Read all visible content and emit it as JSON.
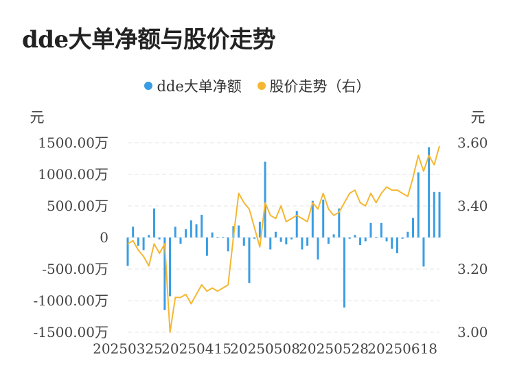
{
  "title": "dde大单净额与股价走势",
  "colors": {
    "bar": "#3a9de4",
    "line": "#f5b731",
    "grid": "#e6e6e6",
    "text": "#444444"
  },
  "chart_data": {
    "type": "bar+line",
    "legend_placement": "top-center",
    "grid": true,
    "series": [
      {
        "name": "dde大单净额",
        "type": "bar",
        "axis": "left",
        "legend_label": "dde大单净额"
      },
      {
        "name": "股价走势",
        "type": "line",
        "axis": "right",
        "legend_label": "股价走势（右）"
      }
    ],
    "y_left": {
      "unit": "元",
      "ylim": [
        -1500,
        1500
      ],
      "ticks": [
        1500,
        1000,
        500,
        0,
        -500,
        -1000,
        -1500
      ],
      "tick_labels": [
        "1500.00万",
        "1000.00万",
        "500.00万",
        "0",
        "-500.00万",
        "-1000.00万",
        "-1500.00万"
      ]
    },
    "y_right": {
      "unit": "元",
      "ylim": [
        3.0,
        3.6
      ],
      "ticks": [
        3.6,
        3.4,
        3.2,
        3.0
      ],
      "tick_labels": [
        "3.60",
        "3.40",
        "3.20",
        "3.00"
      ]
    },
    "x_tick_labels": [
      "20250325",
      "20250415",
      "20250508",
      "20250528",
      "20250618"
    ],
    "x_tick_index": [
      0,
      13,
      26,
      39,
      52
    ],
    "bars": [
      -450,
      170,
      -130,
      -200,
      40,
      460,
      -30,
      -1150,
      -930,
      170,
      -100,
      130,
      270,
      210,
      360,
      -290,
      80,
      -10,
      10,
      -220,
      180,
      190,
      -130,
      -720,
      -20,
      250,
      1200,
      -190,
      90,
      -70,
      -110,
      -30,
      420,
      -190,
      -130,
      580,
      -350,
      600,
      -100,
      50,
      460,
      -1110,
      -20,
      40,
      -120,
      -60,
      230,
      -10,
      230,
      -60,
      -180,
      -250,
      -20,
      90,
      310,
      1030,
      -460,
      1430,
      720,
      720
    ],
    "prices": [
      3.28,
      3.29,
      3.26,
      3.24,
      3.21,
      3.28,
      3.25,
      3.28,
      3.0,
      3.11,
      3.11,
      3.12,
      3.09,
      3.12,
      3.15,
      3.13,
      3.14,
      3.13,
      3.14,
      3.15,
      3.3,
      3.44,
      3.41,
      3.39,
      3.33,
      3.27,
      3.41,
      3.37,
      3.36,
      3.4,
      3.35,
      3.36,
      3.37,
      3.36,
      3.35,
      3.41,
      3.39,
      3.44,
      3.39,
      3.37,
      3.38,
      3.41,
      3.44,
      3.45,
      3.41,
      3.4,
      3.44,
      3.41,
      3.44,
      3.46,
      3.45,
      3.45,
      3.44,
      3.43,
      3.49,
      3.56,
      3.51,
      3.56,
      3.53,
      3.59
    ]
  }
}
